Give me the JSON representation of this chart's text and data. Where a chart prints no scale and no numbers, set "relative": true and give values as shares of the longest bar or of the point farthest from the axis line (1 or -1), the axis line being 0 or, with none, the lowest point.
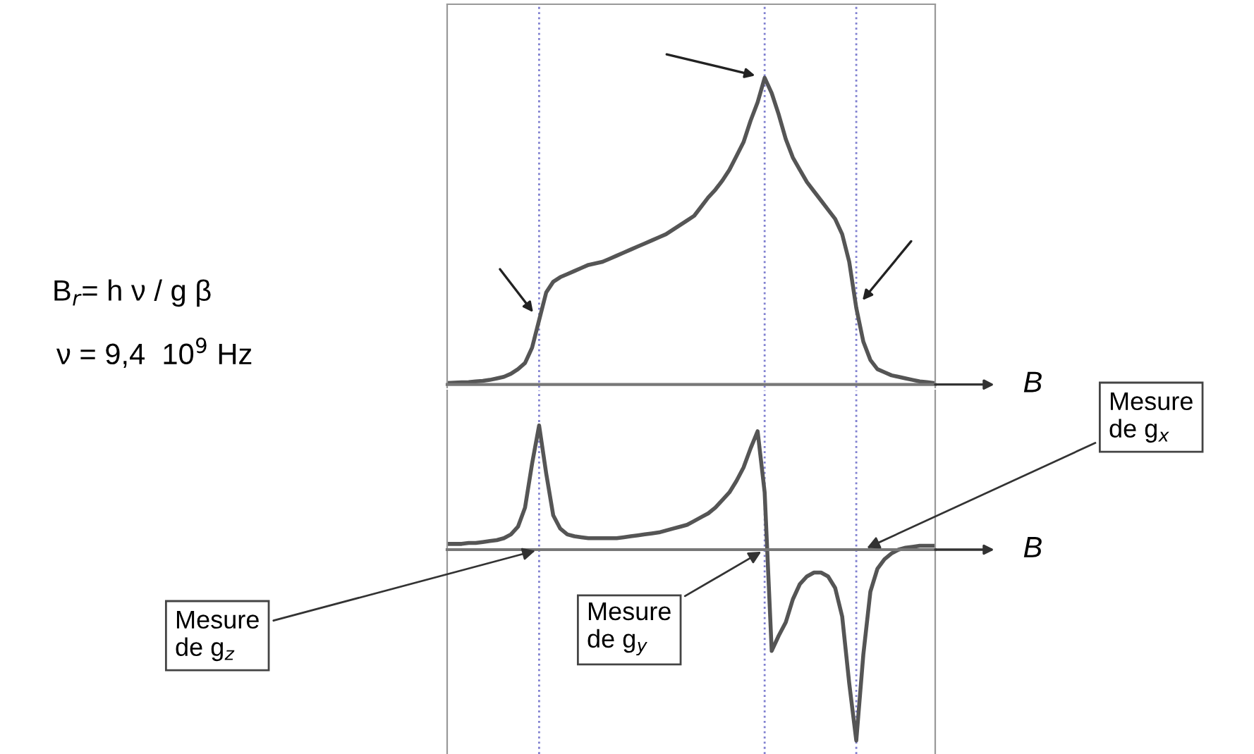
{
  "chart_data": [
    {
      "type": "line",
      "relative": true,
      "xlabel": "B",
      "color": "#555555",
      "grid": "x",
      "categories": [
        null,
        null,
        null,
        null,
        null,
        null,
        null,
        null,
        null,
        null,
        null,
        null,
        null,
        null,
        null,
        null,
        null,
        null,
        null,
        null,
        null,
        null,
        null,
        null,
        null,
        null,
        null,
        null,
        null,
        null,
        null,
        null,
        null,
        null,
        null,
        null,
        null,
        null,
        null,
        null,
        null,
        null,
        null,
        null,
        null,
        null,
        null,
        null,
        null,
        null,
        null,
        null,
        null,
        null,
        null,
        null,
        null,
        null,
        null,
        null,
        null,
        null,
        null,
        null,
        null,
        null,
        null,
        null,
        null,
        null
      ],
      "values": [
        0.005,
        0.006,
        0.007,
        0.008,
        0.01,
        0.012,
        0.015,
        0.02,
        0.025,
        0.035,
        0.05,
        0.07,
        0.12,
        0.21,
        0.3,
        0.335,
        0.35,
        0.36,
        0.37,
        0.38,
        0.39,
        0.395,
        0.4,
        0.41,
        0.42,
        0.43,
        0.44,
        0.45,
        0.46,
        0.47,
        0.48,
        0.49,
        0.505,
        0.52,
        0.535,
        0.55,
        0.58,
        0.61,
        0.635,
        0.665,
        0.7,
        0.745,
        0.79,
        0.86,
        0.92,
        1.0,
        0.95,
        0.88,
        0.8,
        0.74,
        0.7,
        0.66,
        0.63,
        0.6,
        0.57,
        0.54,
        0.49,
        0.4,
        0.25,
        0.14,
        0.08,
        0.05,
        0.04,
        0.03,
        0.025,
        0.02,
        0.015,
        0.01,
        0.008,
        0.005
      ],
      "annotations": [
        "B$_{r}$= h ν / g β",
        "ν = 9,4  10$^{9}$ Hz"
      ]
    },
    {
      "type": "line",
      "relative": true,
      "xlabel": "B",
      "color": "#555555",
      "grid": "x",
      "categories": [
        null,
        null,
        null,
        null,
        null,
        null,
        null,
        null,
        null,
        null,
        null,
        null,
        null,
        null,
        null,
        null,
        null,
        null,
        null,
        null,
        null,
        null,
        null,
        null,
        null,
        null,
        null,
        null,
        null,
        null,
        null,
        null,
        null,
        null,
        null,
        null,
        null,
        null,
        null,
        null,
        null,
        null,
        null,
        null,
        null,
        null,
        null,
        null,
        null,
        null,
        null,
        null,
        null,
        null,
        null,
        null,
        null,
        null,
        null,
        null,
        null,
        null,
        null,
        null,
        null,
        null,
        null,
        null,
        null,
        null
      ],
      "values": [
        0.03,
        0.03,
        0.03,
        0.035,
        0.035,
        0.04,
        0.045,
        0.05,
        0.06,
        0.08,
        0.12,
        0.22,
        0.45,
        0.65,
        0.4,
        0.18,
        0.11,
        0.08,
        0.07,
        0.065,
        0.06,
        0.06,
        0.06,
        0.06,
        0.06,
        0.065,
        0.07,
        0.075,
        0.08,
        0.085,
        0.09,
        0.1,
        0.11,
        0.12,
        0.13,
        0.15,
        0.17,
        0.19,
        0.22,
        0.26,
        0.3,
        0.36,
        0.43,
        0.53,
        0.62,
        0.3,
        -0.53,
        -0.45,
        -0.38,
        -0.26,
        -0.18,
        -0.14,
        -0.12,
        -0.12,
        -0.14,
        -0.2,
        -0.35,
        -0.7,
        -1.0,
        -0.55,
        -0.22,
        -0.1,
        -0.05,
        -0.02,
        0.0,
        0.01,
        0.015,
        0.02,
        0.02,
        0.02
      ],
      "annotations": [
        "Mesure\nde g$_{z}$",
        "Mesure\nde g$_{y}$",
        "Mesure\nde g$_{x}$"
      ]
    }
  ]
}
